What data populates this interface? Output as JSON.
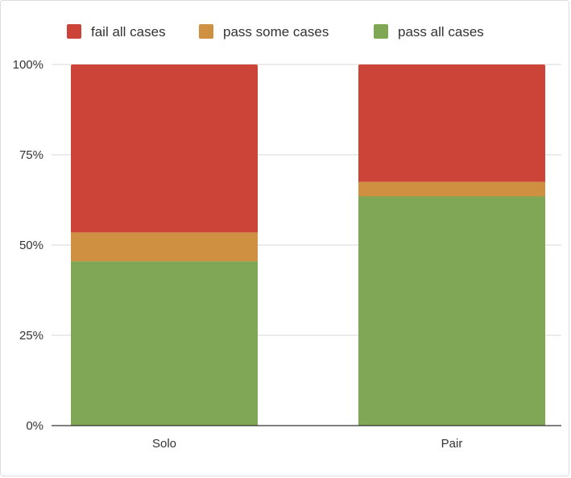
{
  "chart_data": {
    "type": "bar",
    "stacked": true,
    "percent_stacked": true,
    "categories": [
      "Solo",
      "Pair"
    ],
    "series": [
      {
        "name": "pass all cases",
        "color": "#80a755",
        "values": [
          45.5,
          63.5
        ]
      },
      {
        "name": "pass some cases",
        "color": "#d09042",
        "values": [
          8,
          4
        ]
      },
      {
        "name": "fail all cases",
        "color": "#cc4337",
        "values": [
          46.5,
          32.5
        ]
      }
    ],
    "legend_order": [
      "fail all cases",
      "pass some cases",
      "pass all cases"
    ],
    "legend_position": "top",
    "ylim": [
      0,
      100
    ],
    "yticks": [
      {
        "value": 0,
        "label": "0%"
      },
      {
        "value": 25,
        "label": "25%"
      },
      {
        "value": 50,
        "label": "50%"
      },
      {
        "value": 75,
        "label": "75%"
      },
      {
        "value": 100,
        "label": "100%"
      }
    ],
    "grid": true,
    "title": "",
    "xlabel": "",
    "ylabel": ""
  }
}
